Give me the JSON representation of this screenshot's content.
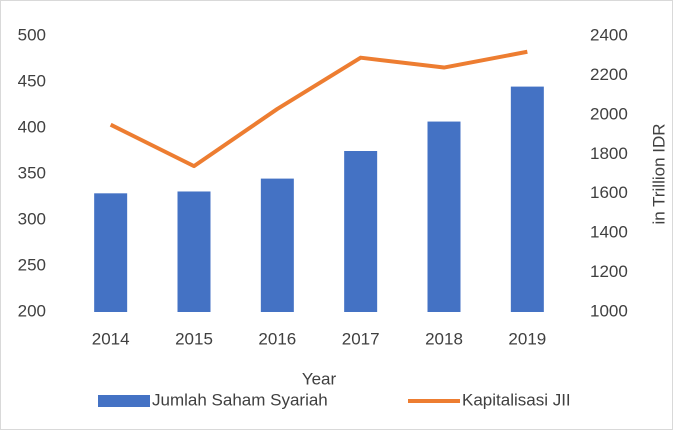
{
  "chart_data": {
    "type": "bar",
    "x_label": "Year",
    "y2_label": "in Trillion IDR",
    "categories": [
      "2014",
      "2015",
      "2016",
      "2017",
      "2018",
      "2019"
    ],
    "series": [
      {
        "name": "Jumlah Saham Syariah",
        "color": "#4472c4",
        "values": [
          329,
          331,
          345,
          375,
          407,
          445
        ]
      },
      {
        "name": "Kapitalisasi JII",
        "color": "#ed7d31",
        "type": "line",
        "axis": "y2",
        "values": [
          1950,
          1740,
          2030,
          2290,
          2240,
          2320
        ]
      }
    ],
    "ylim": [
      200,
      500
    ],
    "yticks": [
      200,
      250,
      300,
      350,
      400,
      450,
      500
    ],
    "y2lim": [
      1000,
      2400
    ],
    "y2ticks": [
      1000,
      1200,
      1400,
      1600,
      1800,
      2000,
      2200,
      2400
    ],
    "grid": false,
    "legend": "bottom"
  }
}
